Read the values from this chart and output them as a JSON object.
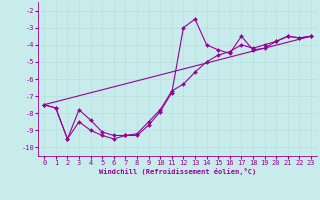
{
  "xlabel": "Windchill (Refroidissement éolien,°C)",
  "xlim": [
    -0.5,
    23.5
  ],
  "ylim": [
    -10.5,
    -1.5
  ],
  "yticks": [
    -10,
    -9,
    -8,
    -7,
    -6,
    -5,
    -4,
    -3,
    -2
  ],
  "xticks": [
    0,
    1,
    2,
    3,
    4,
    5,
    6,
    7,
    8,
    9,
    10,
    11,
    12,
    13,
    14,
    15,
    16,
    17,
    18,
    19,
    20,
    21,
    22,
    23
  ],
  "background_color": "#c8ecec",
  "line_color": "#990099",
  "grid_color": "#b8dede",
  "series1": [
    [
      0,
      -7.5
    ],
    [
      1,
      -7.7
    ],
    [
      2,
      -9.5
    ],
    [
      3,
      -7.8
    ],
    [
      4,
      -8.4
    ],
    [
      5,
      -9.1
    ],
    [
      6,
      -9.3
    ],
    [
      7,
      -9.3
    ],
    [
      8,
      -9.3
    ],
    [
      9,
      -8.7
    ],
    [
      10,
      -7.9
    ],
    [
      11,
      -6.8
    ],
    [
      12,
      -3.0
    ],
    [
      13,
      -2.5
    ],
    [
      14,
      -4.0
    ],
    [
      15,
      -4.3
    ],
    [
      16,
      -4.5
    ],
    [
      17,
      -3.5
    ],
    [
      18,
      -4.3
    ],
    [
      19,
      -4.2
    ],
    [
      20,
      -3.8
    ],
    [
      21,
      -3.5
    ],
    [
      22,
      -3.6
    ],
    [
      23,
      -3.5
    ]
  ],
  "series2": [
    [
      0,
      -7.5
    ],
    [
      1,
      -7.7
    ],
    [
      2,
      -9.5
    ],
    [
      3,
      -8.5
    ],
    [
      4,
      -9.0
    ],
    [
      5,
      -9.3
    ],
    [
      6,
      -9.5
    ],
    [
      7,
      -9.3
    ],
    [
      8,
      -9.2
    ],
    [
      9,
      -8.5
    ],
    [
      10,
      -7.8
    ],
    [
      11,
      -6.7
    ],
    [
      12,
      -6.3
    ],
    [
      13,
      -5.6
    ],
    [
      14,
      -5.0
    ],
    [
      15,
      -4.6
    ],
    [
      16,
      -4.4
    ],
    [
      17,
      -4.0
    ],
    [
      18,
      -4.2
    ],
    [
      19,
      -4.0
    ],
    [
      20,
      -3.8
    ],
    [
      21,
      -3.5
    ],
    [
      22,
      -3.6
    ],
    [
      23,
      -3.5
    ]
  ],
  "series3_x": [
    0,
    23
  ],
  "series3_y": [
    -7.5,
    -3.5
  ],
  "marker_style": "D",
  "marker_size": 2.0,
  "line_width": 0.8
}
